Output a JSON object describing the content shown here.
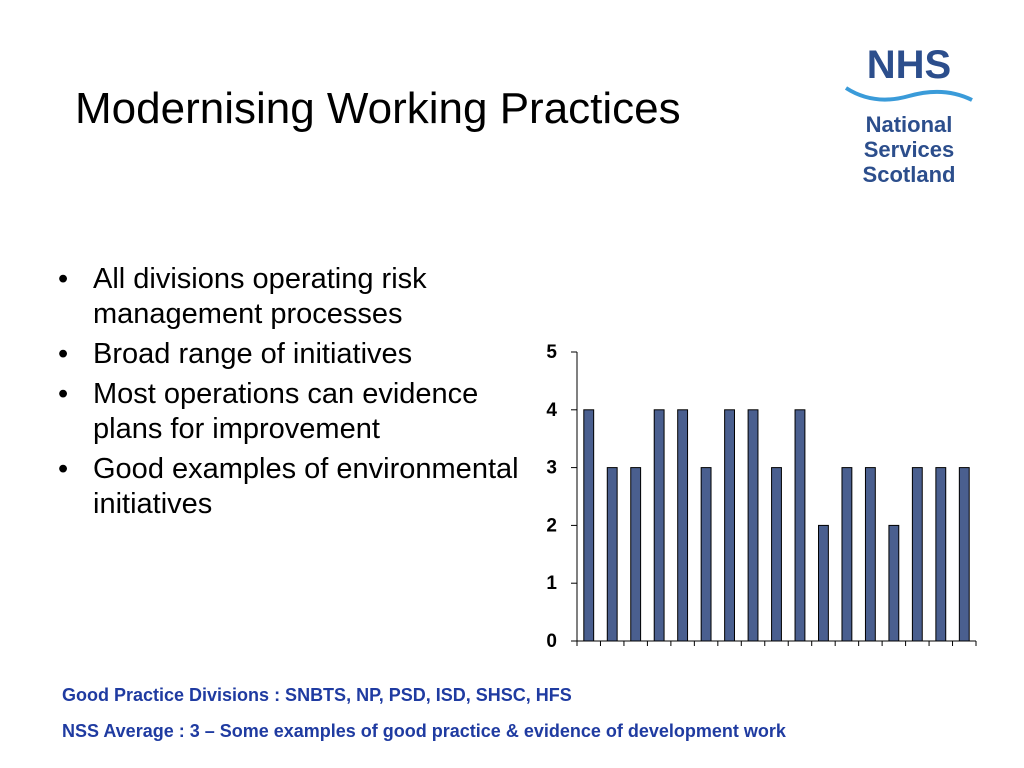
{
  "slide": {
    "title": "Modernising Working Practices",
    "bullets": [
      "All divisions operating risk management processes",
      "Broad range of initiatives",
      "Most operations can evidence plans for improvement",
      "Good examples of environmental initiatives"
    ],
    "footnotes": [
      "Good Practice Divisions : SNBTS, NP, PSD, ISD, SHSC, HFS",
      "NSS Average : 3 – Some examples of good practice & evidence of development work"
    ]
  },
  "logo": {
    "wordmark": "NHS",
    "lines": [
      "National",
      "Services",
      "Scotland"
    ],
    "colors": {
      "primary": "#2c4e8c",
      "wave": "#3a9bd9"
    }
  },
  "chart_data": {
    "type": "bar",
    "title": "",
    "xlabel": "",
    "ylabel": "",
    "ylim": [
      0,
      5
    ],
    "yticks": [
      "0",
      "1",
      "2",
      "3",
      "4",
      "5"
    ],
    "categories": [
      "",
      "",
      "",
      "",
      "",
      "",
      "",
      "",
      "",
      "",
      "",
      "",
      "",
      "",
      "",
      "",
      ""
    ],
    "values": [
      4,
      3,
      3,
      4,
      4,
      3,
      4,
      4,
      3,
      4,
      2,
      3,
      3,
      2,
      3,
      3,
      3
    ],
    "bar_color": "#4a5f8f",
    "bar_stroke": "#000000",
    "grid": false,
    "legend": "none"
  }
}
